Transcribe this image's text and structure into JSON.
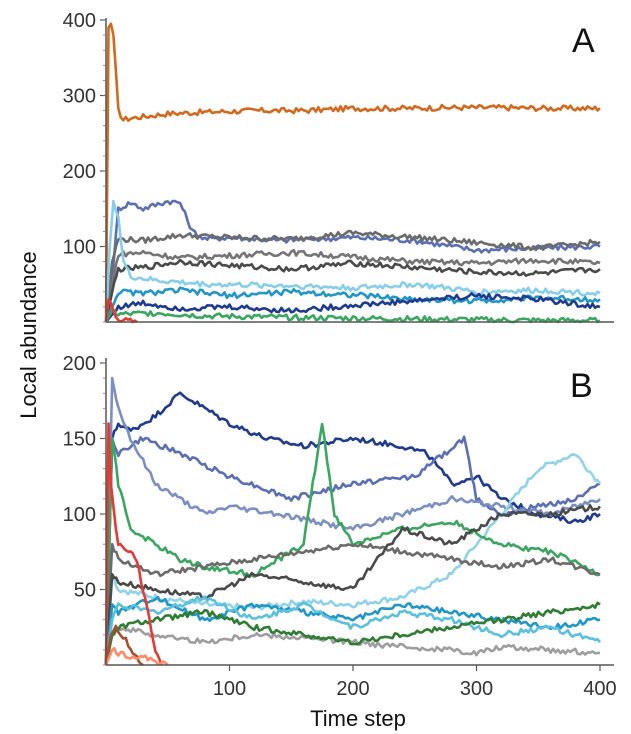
{
  "chart_data": [
    {
      "type": "line",
      "panel_label": "A",
      "xlabel": "Time step",
      "ylabel": "Local abundance",
      "xlim": [
        0,
        400
      ],
      "ylim": [
        0,
        400
      ],
      "xticks": [
        100,
        200,
        300,
        400
      ],
      "yticks": [
        100,
        200,
        300,
        400
      ],
      "grid": false,
      "series": [
        {
          "color": "#d2691e",
          "x": [
            0,
            2,
            4,
            6,
            8,
            10,
            14,
            20,
            30,
            50,
            80,
            120,
            160,
            200,
            240,
            280,
            320,
            360,
            400
          ],
          "y": [
            0,
            390,
            395,
            380,
            330,
            280,
            268,
            270,
            272,
            276,
            278,
            280,
            280,
            283,
            283,
            284,
            284,
            283,
            283
          ]
        },
        {
          "color": "#5a6fb5",
          "x": [
            0,
            5,
            10,
            20,
            30,
            40,
            50,
            60,
            70,
            80,
            100,
            140,
            200,
            250,
            300,
            350,
            400
          ],
          "y": [
            0,
            60,
            150,
            158,
            150,
            155,
            160,
            158,
            120,
            110,
            112,
            108,
            112,
            108,
            95,
            98,
            100
          ]
        },
        {
          "color": "#6b6b6b",
          "x": [
            0,
            5,
            10,
            30,
            60,
            100,
            150,
            200,
            250,
            300,
            350,
            400
          ],
          "y": [
            0,
            80,
            110,
            108,
            115,
            112,
            110,
            118,
            112,
            105,
            98,
            106
          ]
        },
        {
          "color": "#757575",
          "x": [
            0,
            5,
            10,
            30,
            60,
            100,
            150,
            200,
            250,
            300,
            350,
            400
          ],
          "y": [
            0,
            50,
            90,
            92,
            85,
            88,
            92,
            86,
            80,
            78,
            82,
            78
          ]
        },
        {
          "color": "#4a4a4a",
          "x": [
            0,
            5,
            10,
            30,
            60,
            100,
            150,
            200,
            250,
            300,
            350,
            400
          ],
          "y": [
            0,
            40,
            70,
            72,
            80,
            75,
            70,
            78,
            72,
            66,
            64,
            70
          ]
        },
        {
          "color": "#87ceeb",
          "x": [
            0,
            3,
            6,
            10,
            14,
            20,
            40,
            80,
            150,
            200,
            250,
            300,
            350,
            400
          ],
          "y": [
            0,
            100,
            160,
            140,
            80,
            60,
            55,
            50,
            48,
            45,
            50,
            40,
            42,
            38
          ]
        },
        {
          "color": "#2196c8",
          "x": [
            0,
            5,
            10,
            30,
            60,
            100,
            150,
            200,
            250,
            300,
            350,
            400
          ],
          "y": [
            0,
            20,
            40,
            38,
            42,
            35,
            40,
            36,
            30,
            28,
            32,
            30
          ]
        },
        {
          "color": "#1f3b8f",
          "x": [
            0,
            5,
            10,
            30,
            60,
            100,
            150,
            200,
            250,
            300,
            350,
            400
          ],
          "y": [
            0,
            10,
            20,
            25,
            18,
            20,
            15,
            22,
            28,
            35,
            30,
            20
          ]
        },
        {
          "color": "#3aa660",
          "x": [
            0,
            5,
            10,
            40,
            80,
            150,
            200,
            250,
            300,
            350,
            400
          ],
          "y": [
            0,
            15,
            10,
            12,
            8,
            6,
            5,
            4,
            3,
            2,
            2
          ]
        },
        {
          "color": "#e53935",
          "x": [
            0,
            2,
            4,
            6,
            8,
            10,
            14,
            18,
            25
          ],
          "y": [
            0,
            30,
            25,
            15,
            10,
            5,
            3,
            1,
            0
          ]
        }
      ]
    },
    {
      "type": "line",
      "panel_label": "B",
      "xlabel": "Time step",
      "ylabel": "Local abundance",
      "xlim": [
        0,
        400
      ],
      "ylim": [
        0,
        200
      ],
      "xticks": [
        100,
        200,
        300,
        400
      ],
      "yticks": [
        50,
        100,
        150,
        200
      ],
      "grid": false,
      "series": [
        {
          "color": "#1f3b8f",
          "x": [
            0,
            5,
            10,
            20,
            40,
            60,
            80,
            100,
            130,
            160,
            200,
            240,
            260,
            280,
            300,
            320,
            350,
            380,
            400
          ],
          "y": [
            0,
            150,
            160,
            155,
            165,
            180,
            170,
            160,
            150,
            145,
            150,
            145,
            140,
            120,
            125,
            110,
            100,
            95,
            100
          ]
        },
        {
          "color": "#5a6fb5",
          "x": [
            0,
            5,
            10,
            30,
            60,
            100,
            150,
            200,
            250,
            290,
            300,
            320,
            350,
            380,
            400
          ],
          "y": [
            0,
            150,
            140,
            150,
            140,
            125,
            110,
            120,
            125,
            150,
            110,
            100,
            105,
            110,
            120
          ]
        },
        {
          "color": "#7a8fc2",
          "x": [
            0,
            5,
            10,
            20,
            40,
            60,
            80,
            100,
            140,
            170,
            200,
            240,
            280,
            320,
            360,
            400
          ],
          "y": [
            0,
            190,
            170,
            150,
            120,
            110,
            100,
            105,
            100,
            95,
            90,
            100,
            110,
            105,
            100,
            110
          ]
        },
        {
          "color": "#8fd3ea",
          "x": [
            0,
            5,
            10,
            40,
            80,
            120,
            160,
            200,
            240,
            280,
            300,
            320,
            350,
            380,
            400
          ],
          "y": [
            0,
            60,
            50,
            45,
            40,
            38,
            42,
            40,
            45,
            60,
            80,
            100,
            130,
            140,
            120
          ]
        },
        {
          "color": "#3aa660",
          "x": [
            0,
            5,
            10,
            20,
            40,
            60,
            80,
            120,
            160,
            175,
            185,
            200,
            240,
            280,
            320,
            360,
            400
          ],
          "y": [
            0,
            150,
            120,
            90,
            80,
            70,
            65,
            60,
            80,
            160,
            100,
            80,
            90,
            95,
            80,
            75,
            60
          ]
        },
        {
          "color": "#6b6b6b",
          "x": [
            0,
            5,
            10,
            40,
            80,
            120,
            160,
            200,
            240,
            280,
            320,
            360,
            400
          ],
          "y": [
            0,
            80,
            70,
            60,
            65,
            70,
            75,
            80,
            75,
            70,
            65,
            70,
            60
          ]
        },
        {
          "color": "#4a4a4a",
          "x": [
            0,
            5,
            10,
            40,
            80,
            120,
            160,
            200,
            240,
            280,
            320,
            360,
            400
          ],
          "y": [
            0,
            60,
            55,
            50,
            45,
            60,
            55,
            50,
            90,
            80,
            100,
            100,
            105
          ]
        },
        {
          "color": "#2196c8",
          "x": [
            0,
            5,
            10,
            40,
            80,
            120,
            160,
            200,
            240,
            280,
            320,
            360,
            400
          ],
          "y": [
            0,
            40,
            35,
            45,
            30,
            40,
            35,
            30,
            40,
            35,
            30,
            25,
            30
          ]
        },
        {
          "color": "#5bc0de",
          "x": [
            0,
            5,
            10,
            40,
            80,
            120,
            160,
            200,
            240,
            280,
            320,
            360,
            400
          ],
          "y": [
            0,
            30,
            40,
            35,
            45,
            30,
            40,
            25,
            35,
            30,
            20,
            25,
            15
          ]
        },
        {
          "color": "#9e9e9e",
          "x": [
            0,
            5,
            10,
            40,
            80,
            120,
            160,
            200,
            240,
            280,
            300,
            320,
            360,
            400
          ],
          "y": [
            0,
            20,
            25,
            20,
            15,
            20,
            18,
            15,
            12,
            10,
            8,
            12,
            10,
            8
          ]
        },
        {
          "color": "#2e7d32",
          "x": [
            0,
            5,
            10,
            40,
            80,
            120,
            160,
            200,
            240,
            280,
            320,
            360,
            400
          ],
          "y": [
            0,
            20,
            25,
            30,
            35,
            25,
            20,
            15,
            20,
            25,
            30,
            35,
            40
          ]
        },
        {
          "color": "#e53935",
          "x": [
            0,
            2,
            4,
            8,
            10,
            15,
            20,
            25,
            30,
            35,
            40,
            45
          ],
          "y": [
            0,
            160,
            120,
            90,
            80,
            78,
            75,
            70,
            50,
            30,
            10,
            0
          ]
        },
        {
          "color": "#a0522d",
          "x": [
            0,
            4,
            8,
            12,
            16,
            20,
            25,
            30
          ],
          "y": [
            0,
            20,
            25,
            20,
            18,
            10,
            5,
            0
          ]
        },
        {
          "color": "#ff8a65",
          "x": [
            0,
            5,
            10,
            20,
            30,
            40,
            45,
            50
          ],
          "y": [
            0,
            10,
            8,
            6,
            5,
            3,
            1,
            0
          ]
        }
      ]
    }
  ]
}
